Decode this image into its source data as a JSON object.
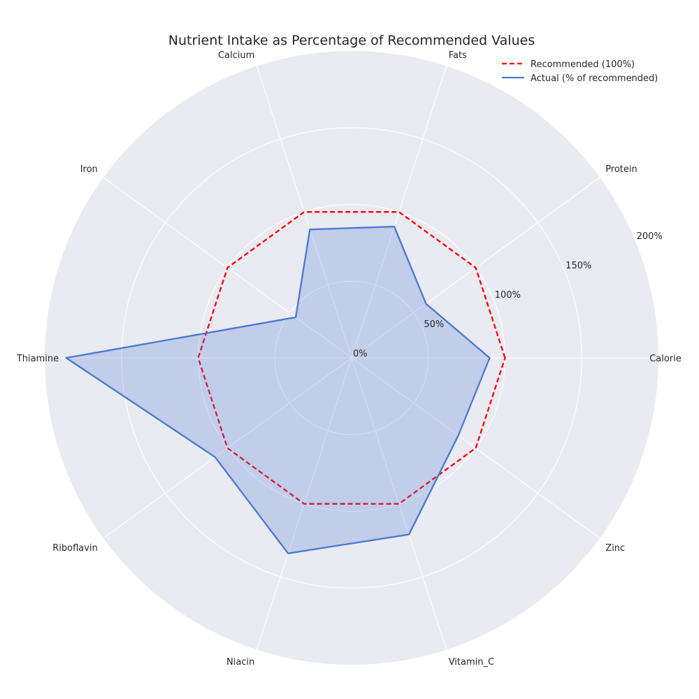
{
  "chart_data": {
    "type": "radar",
    "title": "Nutrient Intake as Percentage of Recommended Values",
    "categories": [
      "Calorie",
      "Protein",
      "Fats",
      "Calcium",
      "Iron",
      "Thiamine",
      "Riboflavin",
      "Niacin",
      "Vitamin_C",
      "Zinc"
    ],
    "series": [
      {
        "name": "Recommended (100%)",
        "values": [
          100,
          100,
          100,
          100,
          100,
          100,
          100,
          100,
          100,
          100
        ],
        "color": "#ff0000",
        "style": "dashed"
      },
      {
        "name": "Actual (% of recommended)",
        "values": [
          90,
          60,
          90,
          88,
          45,
          186,
          110,
          134,
          121,
          86
        ],
        "color": "#4878d0",
        "style": "solid",
        "fill": "#4878d0"
      }
    ],
    "radial_ticks": [
      0,
      50,
      100,
      150,
      200
    ],
    "radial_tick_labels": [
      "0%",
      "50%",
      "100%",
      "150%",
      "200%"
    ],
    "rlim": [
      0,
      200
    ],
    "grid": true,
    "legend_position": "top-right",
    "background_color": "#eaeaf2"
  }
}
